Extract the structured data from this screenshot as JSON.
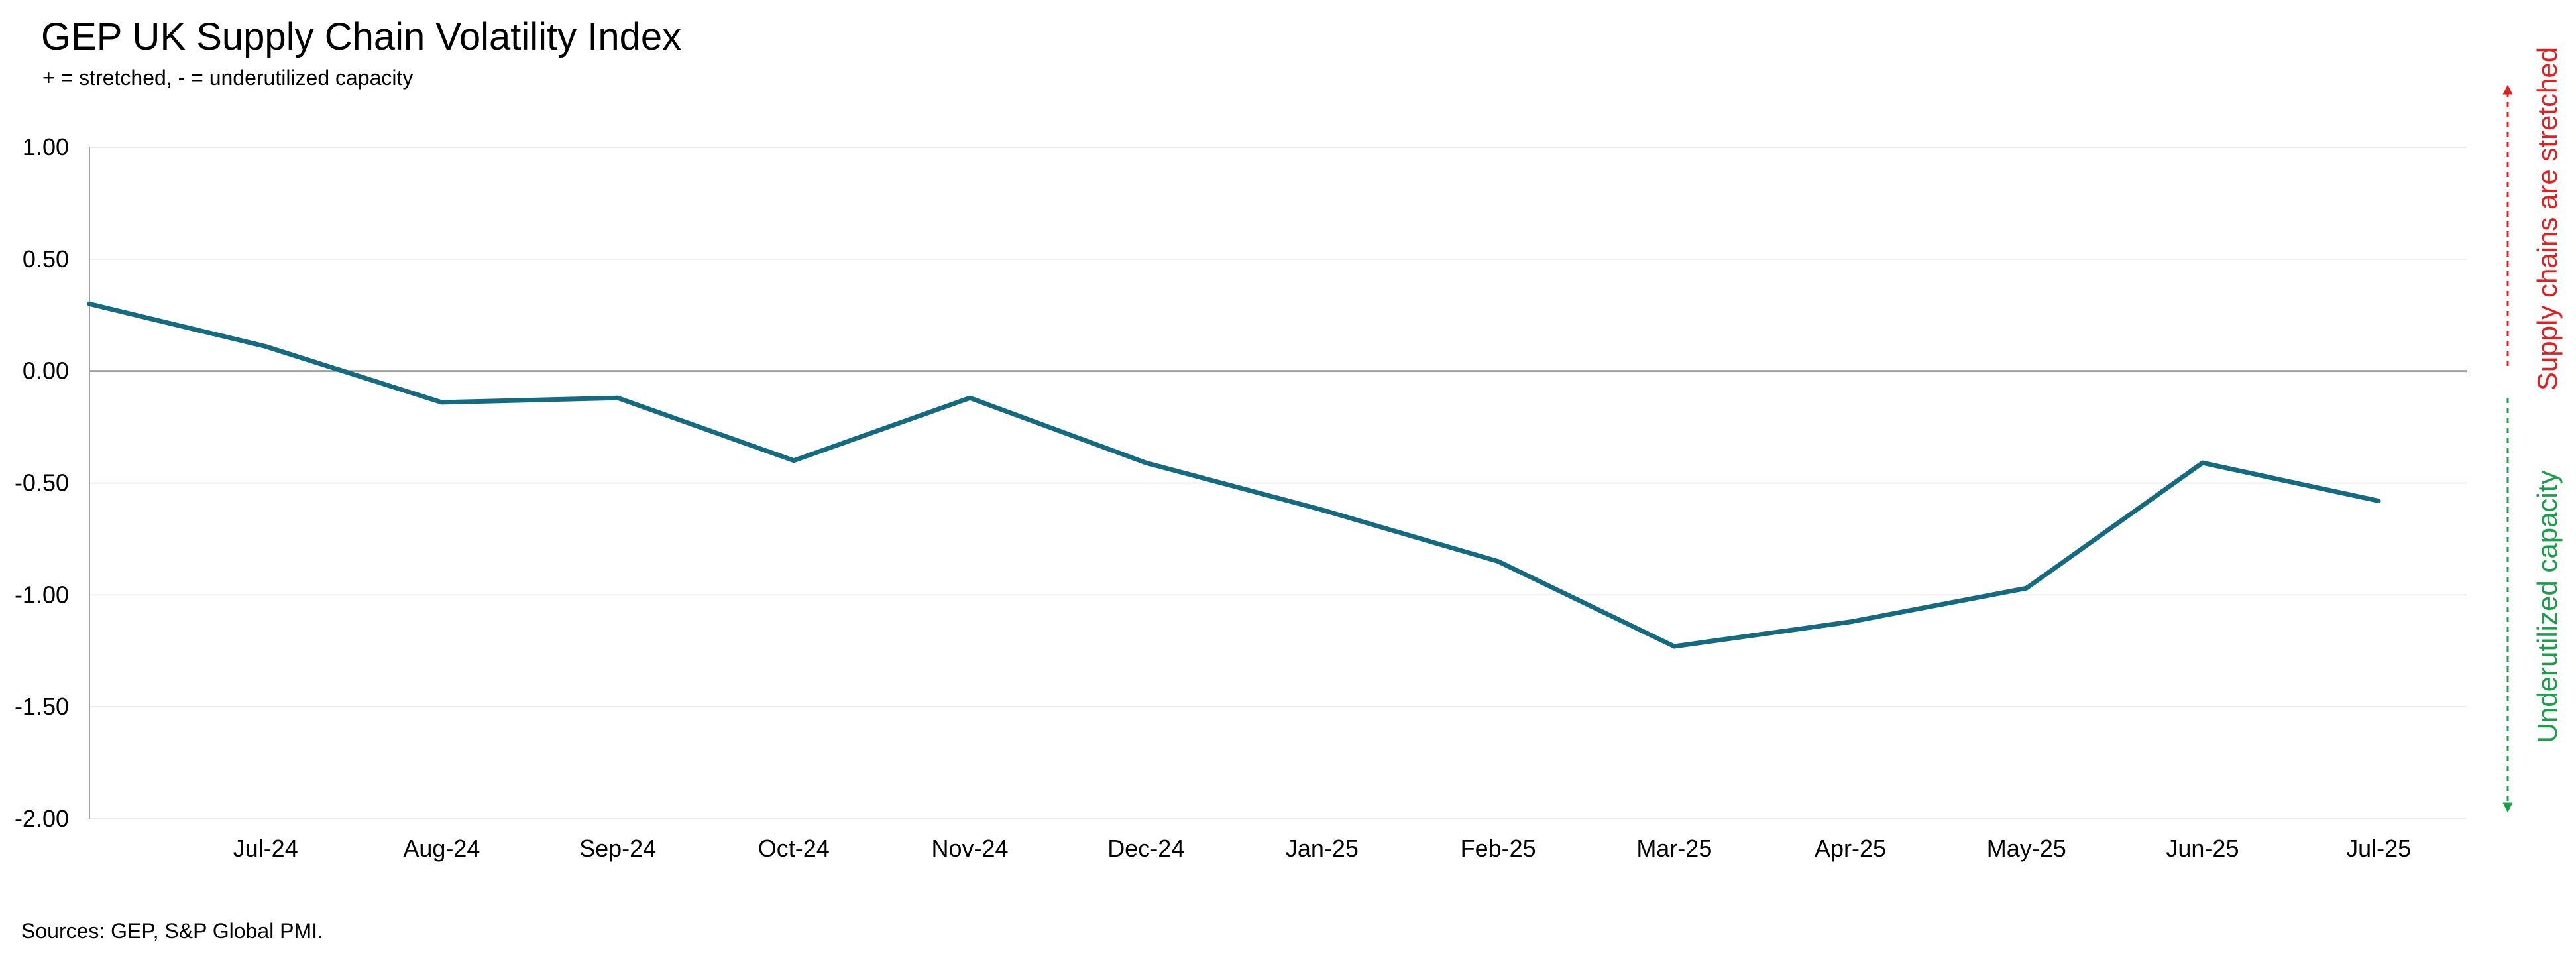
{
  "chart_data": {
    "type": "line",
    "title": "GEP UK Supply Chain Volatility Index",
    "subtitle": "+ = stretched, - = underutilized capacity",
    "source": "Sources: GEP, S&P Global PMI.",
    "categories": [
      "Jul-24",
      "Aug-24",
      "Sep-24",
      "Oct-24",
      "Nov-24",
      "Dec-24",
      "Jan-25",
      "Feb-25",
      "Mar-25",
      "Apr-25",
      "May-25",
      "Jun-25",
      "Jul-25"
    ],
    "y_tick_labels": [
      "1.00",
      "0.50",
      "0.00",
      "-0.50",
      "-1.00",
      "-1.50",
      "-2.00"
    ],
    "ylim": [
      -2.0,
      1.0
    ],
    "grid": true,
    "series": [
      {
        "color": "#146A80",
        "start_value": 0.3,
        "values": [
          0.11,
          -0.14,
          -0.12,
          -0.4,
          -0.12,
          -0.41,
          -0.62,
          -0.85,
          -1.23,
          -1.12,
          -0.97,
          -0.41,
          -0.58
        ]
      }
    ],
    "annotations": {
      "up_label": "Supply chains are stretched",
      "up_color": "#E02020",
      "down_label": "Underutilized capacity",
      "down_color": "#1A9E4A"
    }
  }
}
